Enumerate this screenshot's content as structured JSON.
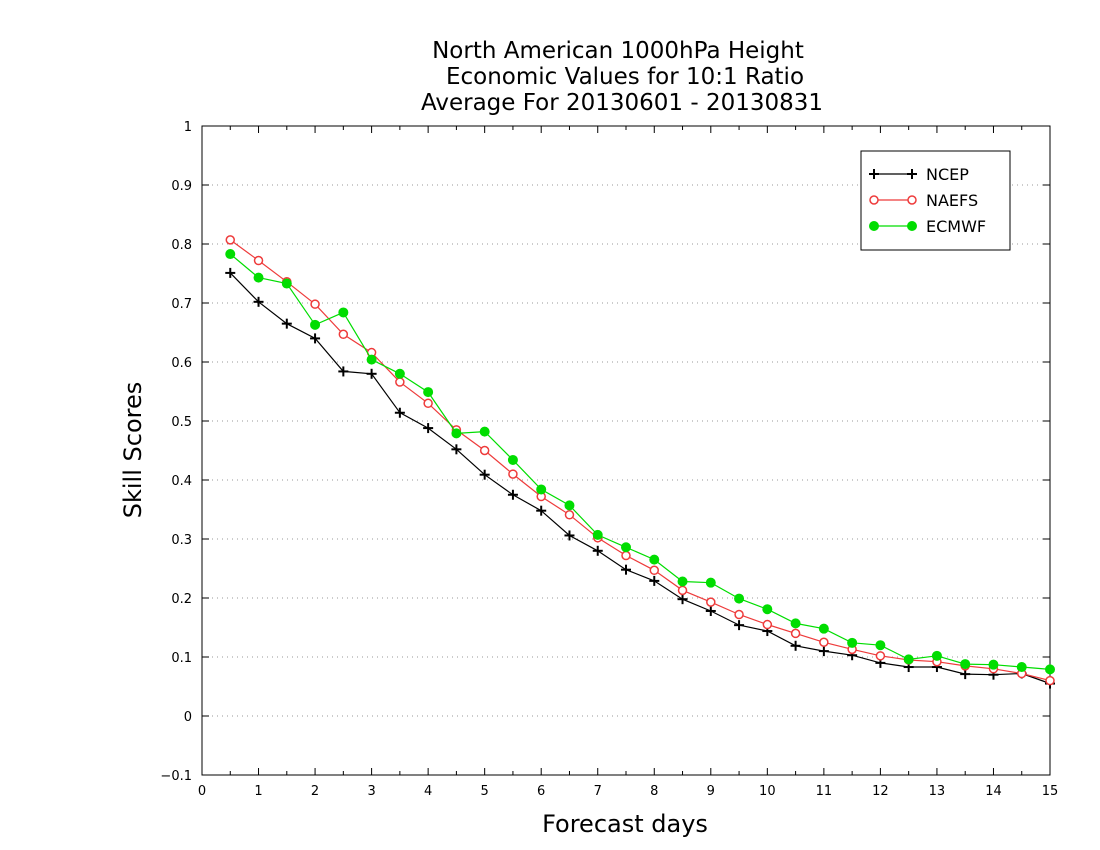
{
  "chart_data": {
    "type": "line",
    "title_lines": [
      "North American 1000hPa Height",
      "Economic Values for 10:1 Ratio",
      "Average For 20130601 - 20130831"
    ],
    "xlabel": "Forecast days",
    "ylabel": "Skill Scores",
    "xlim": [
      0,
      15
    ],
    "ylim": [
      -0.1,
      1
    ],
    "x_ticks": [
      "0",
      "1",
      "2",
      "3",
      "4",
      "5",
      "6",
      "7",
      "8",
      "9",
      "10",
      "11",
      "12",
      "13",
      "14",
      "15"
    ],
    "y_ticks": [
      "−0.1",
      "0",
      "0.1",
      "0.2",
      "0.3",
      "0.4",
      "0.5",
      "0.6",
      "0.7",
      "0.8",
      "0.9",
      "1"
    ],
    "grid": "horizontal dotted",
    "legend_position": "top-right",
    "x": [
      0.5,
      1,
      1.5,
      2,
      2.5,
      3,
      3.5,
      4,
      4.5,
      5,
      5.5,
      6,
      6.5,
      7,
      7.5,
      8,
      8.5,
      9,
      9.5,
      10,
      10.5,
      11,
      11.5,
      12,
      12.5,
      13,
      13.5,
      14,
      14.5,
      15
    ],
    "series": [
      {
        "name": "NCEP",
        "color": "#000000",
        "marker": "plus",
        "values": [
          0.751,
          0.702,
          0.665,
          0.64,
          0.584,
          0.58,
          0.514,
          0.488,
          0.452,
          0.409,
          0.375,
          0.348,
          0.306,
          0.28,
          0.248,
          0.229,
          0.198,
          0.178,
          0.154,
          0.144,
          0.119,
          0.11,
          0.103,
          0.09,
          0.083,
          0.083,
          0.071,
          0.07,
          0.072,
          0.055
        ]
      },
      {
        "name": "NAEFS",
        "color": "#ee3b3b",
        "marker": "open-circle",
        "values": [
          0.807,
          0.772,
          0.736,
          0.698,
          0.647,
          0.616,
          0.566,
          0.53,
          0.485,
          0.45,
          0.41,
          0.372,
          0.341,
          0.302,
          0.272,
          0.247,
          0.213,
          0.193,
          0.172,
          0.155,
          0.14,
          0.125,
          0.113,
          0.102,
          0.095,
          0.092,
          0.085,
          0.08,
          0.072,
          0.06
        ]
      },
      {
        "name": "ECMWF",
        "color": "#00dd00",
        "marker": "filled-circle",
        "values": [
          0.783,
          0.743,
          0.733,
          0.663,
          0.684,
          0.604,
          0.58,
          0.549,
          0.479,
          0.482,
          0.434,
          0.384,
          0.357,
          0.307,
          0.286,
          0.265,
          0.228,
          0.226,
          0.199,
          0.181,
          0.157,
          0.148,
          0.124,
          0.12,
          0.096,
          0.102,
          0.088,
          0.087,
          0.083,
          0.079
        ]
      }
    ]
  }
}
